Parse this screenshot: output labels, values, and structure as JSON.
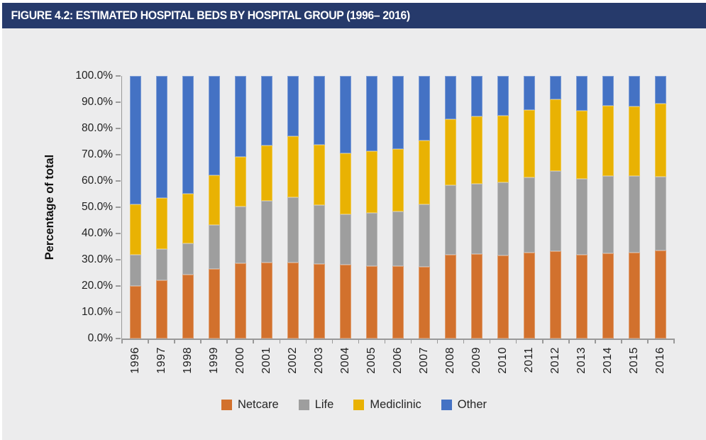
{
  "figure": {
    "title": "FIGURE 4.2: ESTIMATED HOSPITAL BEDS BY HOSPITAL GROUP (1996– 2016)"
  },
  "colors": {
    "title_bar_bg": "#263A6B",
    "title_text": "#FFFFFF",
    "canvas_bg": "#ECECED",
    "axis_line": "#999999",
    "tick_text": "#1F1F1F",
    "legend_text": "#262626",
    "netcare": "#D2712D",
    "life": "#9E9E9E",
    "mediclinic": "#E9B203",
    "other": "#4472C4"
  },
  "chart_data": {
    "type": "bar",
    "stacked": true,
    "title": "FIGURE 4.2: ESTIMATED HOSPITAL BEDS BY HOSPITAL GROUP (1996– 2016)",
    "xlabel": "",
    "ylabel": "Percentage of total",
    "ylim": [
      0,
      100
    ],
    "grid": false,
    "legend_position": "bottom",
    "y_tick_labels": [
      "100.0%",
      "90.0%",
      "80.0%",
      "70.0%",
      "60.0%",
      "50.0%",
      "40.0%",
      "30.0%",
      "20.0%",
      "10.0%",
      "0.0%"
    ],
    "categories": [
      "1996",
      "1997",
      "1998",
      "1999",
      "2000",
      "2001",
      "2002",
      "2003",
      "2004",
      "2005",
      "2006",
      "2007",
      "2008",
      "2009",
      "2010",
      "2011",
      "2012",
      "2013",
      "2014",
      "2015",
      "2016"
    ],
    "series": [
      {
        "name": "Netcare",
        "color": "#D2712D",
        "values": [
          20.0,
          22.3,
          24.4,
          26.4,
          28.7,
          29.0,
          29.0,
          28.4,
          28.0,
          27.7,
          27.6,
          27.4,
          32.0,
          32.3,
          31.5,
          32.7,
          33.3,
          31.9,
          32.5,
          32.7,
          33.4
        ]
      },
      {
        "name": "Life",
        "color": "#9E9E9E",
        "values": [
          12.0,
          11.8,
          11.9,
          16.8,
          21.6,
          23.5,
          24.9,
          22.3,
          19.2,
          20.1,
          20.9,
          23.7,
          26.4,
          26.7,
          28.0,
          28.6,
          30.5,
          28.8,
          29.4,
          29.2,
          28.3
        ]
      },
      {
        "name": "Mediclinic",
        "color": "#E9B203",
        "values": [
          19.0,
          19.3,
          18.8,
          18.9,
          19.0,
          20.9,
          23.2,
          23.1,
          23.4,
          23.6,
          23.7,
          24.3,
          25.1,
          25.7,
          25.4,
          25.7,
          27.2,
          26.0,
          26.8,
          26.6,
          27.8
        ]
      },
      {
        "name": "Other",
        "color": "#4472C4",
        "values": [
          49.0,
          46.6,
          44.9,
          37.9,
          30.7,
          26.6,
          22.9,
          26.2,
          29.4,
          28.6,
          27.8,
          24.6,
          16.5,
          15.3,
          15.1,
          13.0,
          9.0,
          13.3,
          11.3,
          11.5,
          10.5
        ]
      }
    ]
  }
}
